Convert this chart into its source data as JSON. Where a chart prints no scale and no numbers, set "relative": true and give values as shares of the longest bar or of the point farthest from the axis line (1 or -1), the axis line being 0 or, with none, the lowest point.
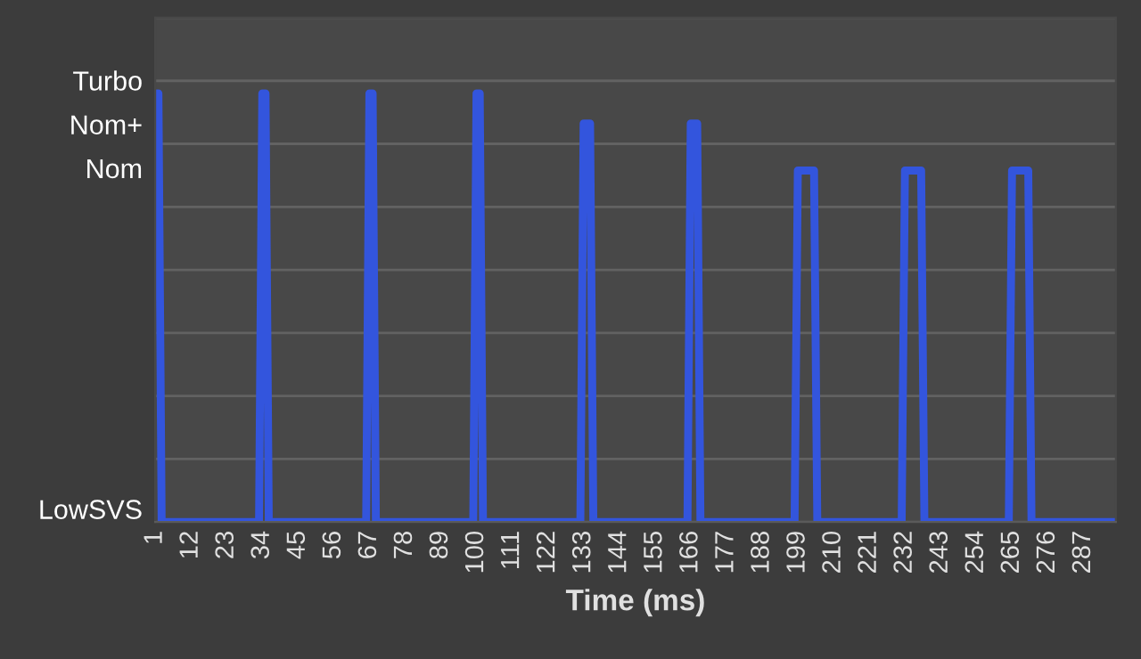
{
  "chart_data": {
    "type": "line",
    "xlabel": "Time (ms)",
    "relative": true,
    "x": [
      1,
      2,
      3,
      33,
      34,
      35,
      36,
      66,
      67,
      68,
      69,
      99,
      100,
      101,
      102,
      132,
      133,
      135,
      136,
      165,
      166,
      168,
      169,
      198,
      199,
      204,
      205,
      231,
      232,
      237,
      238,
      264,
      265,
      270,
      271,
      297
    ],
    "series": [
      {
        "color": "#3355dd",
        "values": [
          1,
          1,
          0,
          0,
          1,
          1,
          0,
          0,
          1,
          1,
          0,
          0,
          1,
          1,
          0,
          0,
          0.93,
          0.93,
          0,
          0,
          0.93,
          0.93,
          0,
          0,
          0.82,
          0.82,
          0,
          0,
          0.82,
          0.82,
          0,
          0,
          0.82,
          0.82,
          0,
          0
        ]
      }
    ],
    "xlim": [
      1,
      297
    ],
    "xticks": [
      1,
      12,
      23,
      34,
      45,
      56,
      67,
      78,
      89,
      100,
      111,
      122,
      133,
      144,
      155,
      166,
      177,
      188,
      199,
      210,
      221,
      232,
      243,
      254,
      265,
      276,
      287
    ],
    "annotations": [
      "Turbo",
      "Nom+",
      "Nom",
      "LowSVS"
    ],
    "grid": "y",
    "marker": "none",
    "line_style": "solid"
  }
}
